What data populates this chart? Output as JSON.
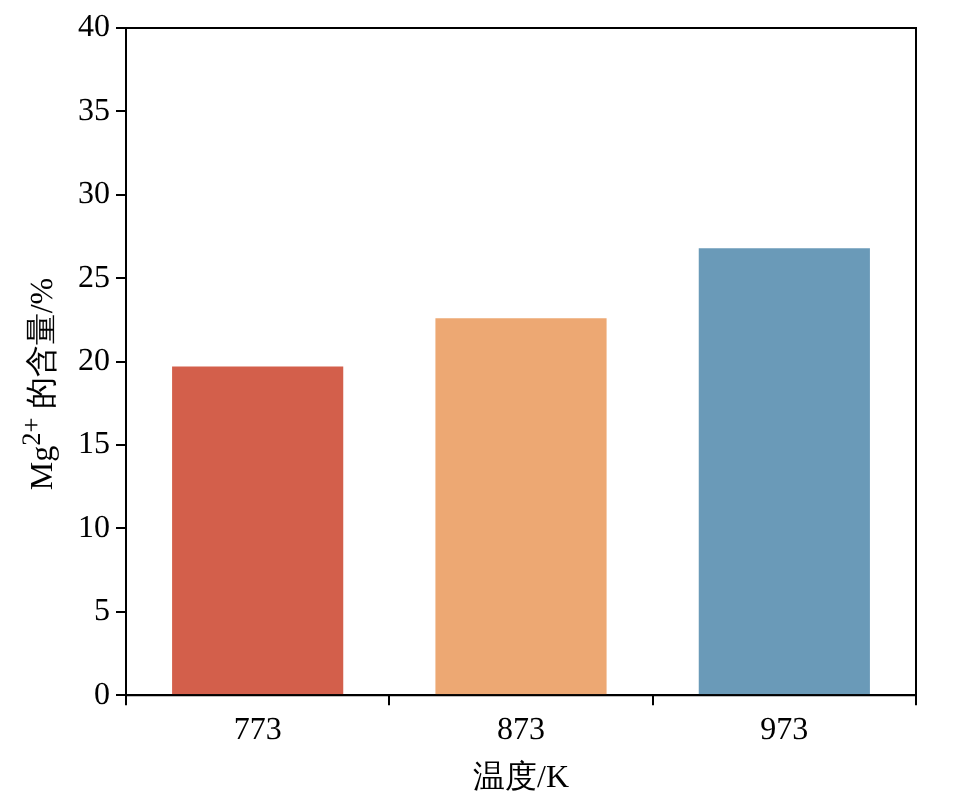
{
  "chart_data": {
    "type": "bar",
    "xlabel": "温度/K",
    "ylabel": "Mg$^{2+}$ 的含量/%",
    "categories": [
      "773",
      "873",
      "973"
    ],
    "values": [
      19.7,
      22.6,
      26.8
    ],
    "colors": [
      "#d35f4b",
      "#eda873",
      "#6a9ab8"
    ],
    "ylim": [
      0,
      40
    ],
    "yticks": [
      0,
      5,
      10,
      15,
      20,
      25,
      30,
      35,
      40
    ],
    "grid": false,
    "legend": false
  }
}
